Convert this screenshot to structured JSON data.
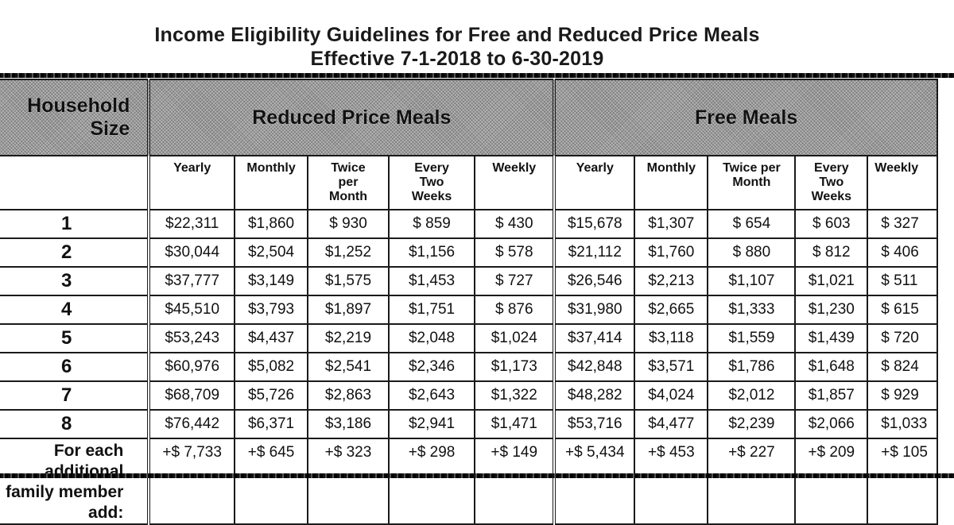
{
  "document": {
    "title_line1": "Income Eligibility Guidelines for Free and Reduced Price Meals",
    "title_line2": "Effective 7-1-2018 to 6-30-2019"
  },
  "table": {
    "household_header": "Household Size",
    "groups": [
      {
        "label": "Reduced Price Meals"
      },
      {
        "label": "Free Meals"
      }
    ],
    "columns": {
      "reduced": [
        "Yearly",
        "Monthly",
        "Twice per Month",
        "Every Two Weeks",
        "Weekly"
      ],
      "free": [
        "Yearly",
        "Monthly",
        "Twice per Month",
        "Every Two Weeks",
        "Weekly"
      ]
    },
    "rows": [
      {
        "size": "1",
        "reduced": [
          "$22,311",
          "$1,860",
          "$ 930",
          "$ 859",
          "$ 430"
        ],
        "free": [
          "$15,678",
          "$1,307",
          "$ 654",
          "$ 603",
          "$ 327"
        ]
      },
      {
        "size": "2",
        "reduced": [
          "$30,044",
          "$2,504",
          "$1,252",
          "$1,156",
          "$ 578"
        ],
        "free": [
          "$21,112",
          "$1,760",
          "$ 880",
          "$ 812",
          "$ 406"
        ]
      },
      {
        "size": "3",
        "reduced": [
          "$37,777",
          "$3,149",
          "$1,575",
          "$1,453",
          "$ 727"
        ],
        "free": [
          "$26,546",
          "$2,213",
          "$1,107",
          "$1,021",
          "$ 511"
        ]
      },
      {
        "size": "4",
        "reduced": [
          "$45,510",
          "$3,793",
          "$1,897",
          "$1,751",
          "$ 876"
        ],
        "free": [
          "$31,980",
          "$2,665",
          "$1,333",
          "$1,230",
          "$ 615"
        ]
      },
      {
        "size": "5",
        "reduced": [
          "$53,243",
          "$4,437",
          "$2,219",
          "$2,048",
          "$1,024"
        ],
        "free": [
          "$37,414",
          "$3,118",
          "$1,559",
          "$1,439",
          "$ 720"
        ]
      },
      {
        "size": "6",
        "reduced": [
          "$60,976",
          "$5,082",
          "$2,541",
          "$2,346",
          "$1,173"
        ],
        "free": [
          "$42,848",
          "$3,571",
          "$1,786",
          "$1,648",
          "$ 824"
        ]
      },
      {
        "size": "7",
        "reduced": [
          "$68,709",
          "$5,726",
          "$2,863",
          "$2,643",
          "$1,322"
        ],
        "free": [
          "$48,282",
          "$4,024",
          "$2,012",
          "$1,857",
          "$ 929"
        ]
      },
      {
        "size": "8",
        "reduced": [
          "$76,442",
          "$6,371",
          "$3,186",
          "$2,941",
          "$1,471"
        ],
        "free": [
          "$53,716",
          "$4,477",
          "$2,239",
          "$2,066",
          "$1,033"
        ]
      }
    ],
    "additional": {
      "label_line1": "For each additional",
      "label_line2": "family member add:",
      "reduced": [
        "+$ 7,733",
        "+$ 645",
        "+$ 323",
        "+$ 298",
        "+$ 149"
      ],
      "free": [
        "+$ 5,434",
        "+$ 453",
        "+$ 227",
        "+$ 209",
        "+$ 105"
      ]
    }
  }
}
